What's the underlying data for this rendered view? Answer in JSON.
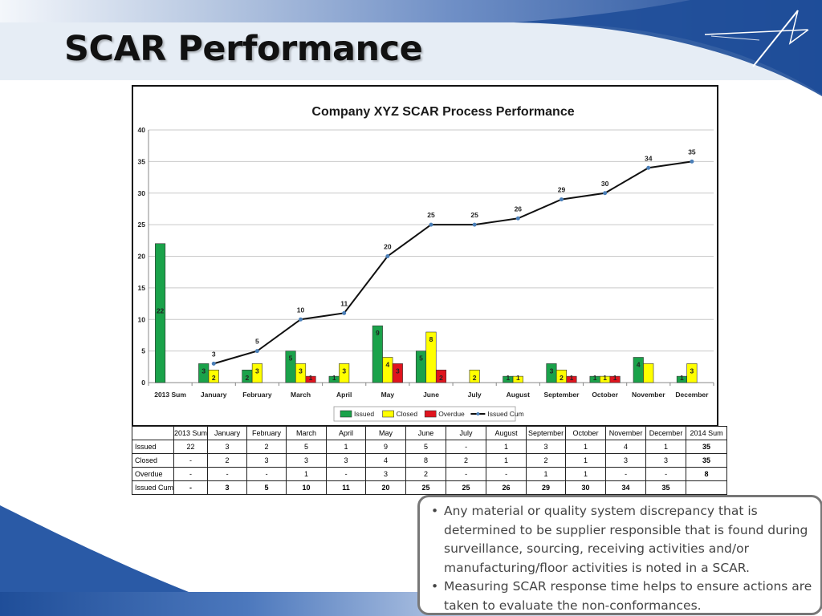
{
  "slide": {
    "title": "SCAR Performance",
    "colors": {
      "banner_dark": "#1f4e99",
      "banner_mid": "#4a73b8",
      "banner_light": "#e3eaf4"
    }
  },
  "chart_data": {
    "type": "bar",
    "title": "Company XYZ SCAR Process Performance",
    "xlabel": "",
    "ylabel": "",
    "categories": [
      "2013 Sum",
      "January",
      "February",
      "March",
      "April",
      "May",
      "June",
      "July",
      "August",
      "September",
      "October",
      "November",
      "December"
    ],
    "ylim": [
      0,
      40
    ],
    "yticks": [
      0,
      5,
      10,
      15,
      20,
      25,
      30,
      35,
      40
    ],
    "grid": true,
    "legend_position": "bottom",
    "series": [
      {
        "name": "Issued",
        "type": "bar",
        "color": "#1aa24a",
        "values": [
          22,
          3,
          2,
          5,
          1,
          9,
          5,
          null,
          1,
          3,
          1,
          4,
          1
        ],
        "labels": [
          "22",
          "3",
          "2",
          "5",
          "1",
          "9",
          "5",
          "",
          "1",
          "3",
          "1",
          "4",
          "1"
        ]
      },
      {
        "name": "Closed",
        "type": "bar",
        "color": "#ffff00",
        "values": [
          null,
          2,
          3,
          3,
          3,
          4,
          8,
          2,
          1,
          2,
          1,
          3,
          3
        ],
        "labels": [
          "",
          "2",
          "3",
          "3",
          "3",
          "4",
          "8",
          "2",
          "1",
          "2",
          "1",
          "",
          "3"
        ]
      },
      {
        "name": "Overdue",
        "type": "bar",
        "color": "#e0141e",
        "values": [
          null,
          null,
          null,
          1,
          null,
          3,
          2,
          null,
          null,
          1,
          1,
          null,
          null
        ],
        "labels": [
          "",
          "",
          "",
          "1",
          "",
          "3",
          "2",
          "",
          "",
          "1",
          "1",
          "",
          ""
        ]
      },
      {
        "name": "Issued Cum",
        "type": "line",
        "color": "#111111",
        "values": [
          null,
          3,
          5,
          10,
          11,
          20,
          25,
          25,
          26,
          29,
          30,
          34,
          35
        ],
        "labels": [
          "",
          "3",
          "5",
          "10",
          "11",
          "20",
          "25",
          "25",
          "26",
          "29",
          "30",
          "34",
          "35"
        ]
      }
    ]
  },
  "table": {
    "headers": [
      "",
      "2013 Sum",
      "January",
      "February",
      "March",
      "April",
      "May",
      "June",
      "July",
      "August",
      "September",
      "October",
      "November",
      "December",
      "2014 Sum"
    ],
    "rows": [
      {
        "label": "Issued",
        "cells": [
          "22",
          "3",
          "2",
          "5",
          "1",
          "9",
          "5",
          "-",
          "1",
          "3",
          "1",
          "4",
          "1",
          "35"
        ]
      },
      {
        "label": "Closed",
        "cells": [
          "-",
          "2",
          "3",
          "3",
          "3",
          "4",
          "8",
          "2",
          "1",
          "2",
          "1",
          "3",
          "3",
          "35"
        ]
      },
      {
        "label": "Overdue",
        "cells": [
          "-",
          "-",
          "-",
          "1",
          "-",
          "3",
          "2",
          "-",
          "-",
          "1",
          "1",
          "-",
          "-",
          "8"
        ]
      },
      {
        "label": "Issued Cum",
        "cells": [
          "-",
          "3",
          "5",
          "10",
          "11",
          "20",
          "25",
          "25",
          "26",
          "29",
          "30",
          "34",
          "35",
          ""
        ]
      }
    ]
  },
  "callout": {
    "bullet_glyph": "•",
    "bullets": [
      "Any material or quality system discrepancy that is determined to be supplier responsible that is found during surveillance, sourcing, receiving activities and/or manufacturing/floor activities is noted in a SCAR.",
      "Measuring  SCAR response time helps to ensure actions are taken to evaluate the non-conformances."
    ]
  },
  "icons": {
    "logo": "star-logo-icon"
  }
}
